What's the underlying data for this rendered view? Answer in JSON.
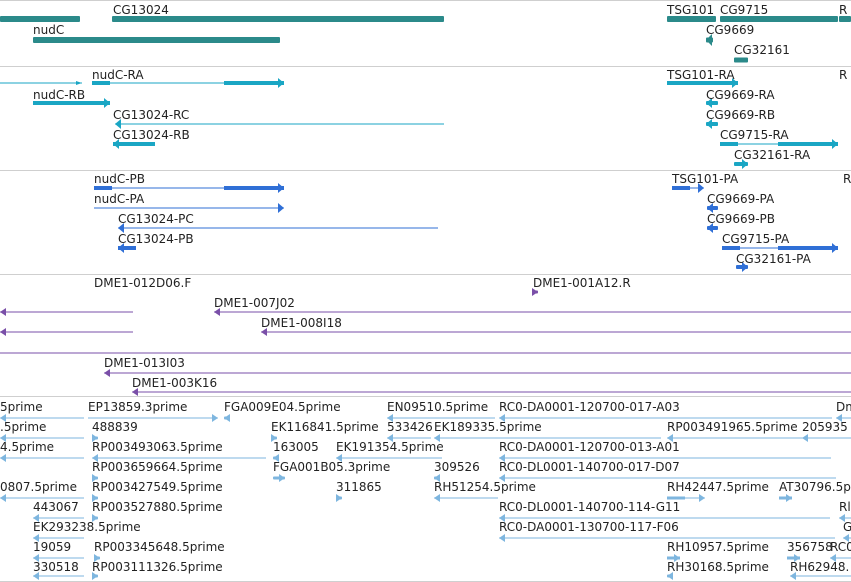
{
  "colors": {
    "gene": "#2b8a8a",
    "transcript": "#1aa6c4",
    "protein": "#2f6fd6",
    "clone": "#7a4fa8",
    "est": "#7eb6df",
    "separator": "#cfcfcf",
    "label": "#222222"
  },
  "tracks": [
    {
      "name": "genes",
      "kind": "gene",
      "features": [
        {
          "label": "CG13024",
          "strand": "none"
        },
        {
          "label": "nudC",
          "strand": "none"
        },
        {
          "label": "TSG101",
          "strand": "none"
        },
        {
          "label": "CG9715",
          "strand": "none"
        },
        {
          "label": "R",
          "strand": "none"
        },
        {
          "label": "CG9669",
          "strand": "minus"
        },
        {
          "label": "CG32161",
          "strand": "none"
        },
        {
          "label": "",
          "strand": "none"
        }
      ]
    },
    {
      "name": "transcripts",
      "kind": "transcript",
      "features": [
        {
          "label": "nudC-RA",
          "strand": "plus"
        },
        {
          "label": "nudC-RB",
          "strand": "plus"
        },
        {
          "label": "CG13024-RC",
          "strand": "minus"
        },
        {
          "label": "CG13024-RB",
          "strand": "minus"
        },
        {
          "label": "TSG101-RA",
          "strand": "plus"
        },
        {
          "label": "R",
          "strand": "none"
        },
        {
          "label": "CG9669-RA",
          "strand": "minus"
        },
        {
          "label": "CG9669-RB",
          "strand": "minus"
        },
        {
          "label": "CG9715-RA",
          "strand": "plus"
        },
        {
          "label": "CG32161-RA",
          "strand": "plus"
        },
        {
          "label": "",
          "strand": "plus"
        }
      ]
    },
    {
      "name": "proteins",
      "kind": "protein",
      "features": [
        {
          "label": "nudC-PB",
          "strand": "plus"
        },
        {
          "label": "nudC-PA",
          "strand": "plus"
        },
        {
          "label": "CG13024-PC",
          "strand": "minus"
        },
        {
          "label": "CG13024-PB",
          "strand": "minus"
        },
        {
          "label": "TSG101-PA",
          "strand": "plus"
        },
        {
          "label": "R",
          "strand": "none"
        },
        {
          "label": "CG9669-PA",
          "strand": "minus"
        },
        {
          "label": "CG9669-PB",
          "strand": "minus"
        },
        {
          "label": "CG9715-PA",
          "strand": "plus"
        },
        {
          "label": "CG32161-PA",
          "strand": "plus"
        }
      ]
    },
    {
      "name": "clones",
      "kind": "clone",
      "features": [
        {
          "label": "DME1-012D06.F",
          "strand": "minus"
        },
        {
          "label": "DME1-001A12.R",
          "strand": "plus"
        },
        {
          "label": "DME1-007J02",
          "strand": "minus"
        },
        {
          "label": "DME1-008I18",
          "strand": "minus"
        },
        {
          "label": "",
          "strand": "minus"
        },
        {
          "label": "",
          "strand": "none"
        },
        {
          "label": "DME1-013I03",
          "strand": "minus"
        },
        {
          "label": "DME1-003K16",
          "strand": "minus"
        }
      ]
    },
    {
      "name": "ests",
      "kind": "est",
      "features": [
        {
          "label": "5prime",
          "strand": "minus"
        },
        {
          "label": "EP13859.3prime",
          "strand": "plus"
        },
        {
          "label": "FGA009E04.5prime",
          "strand": "minus"
        },
        {
          "label": "EN09510.5prime",
          "strand": "minus"
        },
        {
          "label": "RC0-DA0001-120700-017-A03",
          "strand": "minus"
        },
        {
          "label": "Dm",
          "strand": "minus"
        },
        {
          "label": ".5prime",
          "strand": "minus"
        },
        {
          "label": "488839",
          "strand": "plus"
        },
        {
          "label": "EK116841.5prime",
          "strand": "plus"
        },
        {
          "label": "533426",
          "strand": "minus"
        },
        {
          "label": "EK189335.5prime",
          "strand": "minus"
        },
        {
          "label": "RP003491965.5prime",
          "strand": "minus"
        },
        {
          "label": "205935",
          "strand": "minus"
        },
        {
          "label": "4.5prime",
          "strand": "minus"
        },
        {
          "label": "RP003493063.5prime",
          "strand": "minus"
        },
        {
          "label": "163005",
          "strand": "minus"
        },
        {
          "label": "EK191354.5prime",
          "strand": "minus"
        },
        {
          "label": "RC0-DA0001-120700-013-A01",
          "strand": "minus"
        },
        {
          "label": "RP003659664.5prime",
          "strand": "plus"
        },
        {
          "label": "FGA001B05.3prime",
          "strand": "plus"
        },
        {
          "label": "309526",
          "strand": "minus"
        },
        {
          "label": "RC0-DL0001-140700-017-D07",
          "strand": "minus"
        },
        {
          "label": "0807.5prime",
          "strand": "minus"
        },
        {
          "label": "RP003427549.5prime",
          "strand": "plus"
        },
        {
          "label": "311865",
          "strand": "plus"
        },
        {
          "label": "RH51254.5prime",
          "strand": "minus"
        },
        {
          "label": "RH42447.5prime",
          "strand": "plus"
        },
        {
          "label": "AT30796.5prime",
          "strand": "plus"
        },
        {
          "label": "443067",
          "strand": "minus"
        },
        {
          "label": "RP003527880.5prime",
          "strand": "plus"
        },
        {
          "label": "RC0-DL0001-140700-114-G11",
          "strand": "minus"
        },
        {
          "label": "Rl",
          "strand": "minus"
        },
        {
          "label": "EK293238.5prime",
          "strand": "minus"
        },
        {
          "label": "RC0-DA0001-130700-117-F06",
          "strand": "minus"
        },
        {
          "label": "G",
          "strand": "minus"
        },
        {
          "label": "19059",
          "strand": "minus"
        },
        {
          "label": "RP003345648.5prime",
          "strand": "plus"
        },
        {
          "label": "RH10957.5prime",
          "strand": "plus"
        },
        {
          "label": "356758",
          "strand": "plus"
        },
        {
          "label": "RC0",
          "strand": "minus"
        },
        {
          "label": "330518",
          "strand": "minus"
        },
        {
          "label": "RP003111326.5prime",
          "strand": "plus"
        },
        {
          "label": "RH30168.5prime",
          "strand": "minus"
        },
        {
          "label": "RH62948.",
          "strand": "minus"
        }
      ]
    }
  ]
}
